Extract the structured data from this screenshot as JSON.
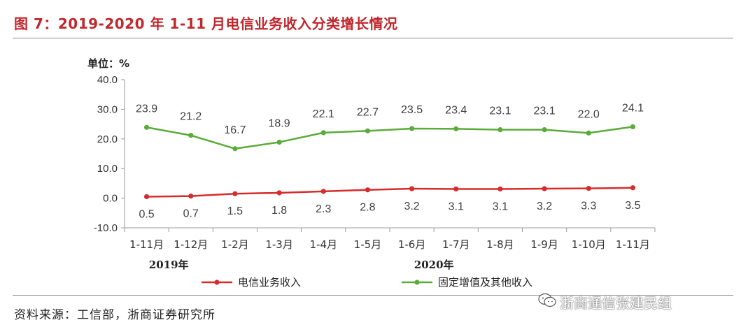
{
  "figure": {
    "title": "图 7：2019-2020 年 1-11 月电信业务收入分类增长情况",
    "source": "资料来源：工信部，浙商证券研究所",
    "watermark": "浙商通信张建民组",
    "watermark_icon": "wechat-icon"
  },
  "chart_data": {
    "type": "line",
    "unit_label": "单位：%",
    "categories": [
      "1-11月",
      "1-12月",
      "1-2月",
      "1-3月",
      "1-4月",
      "1-5月",
      "1-6月",
      "1-7月",
      "1-8月",
      "1-9月",
      "1-10月",
      "1-11月"
    ],
    "year_labels": [
      {
        "label": "2019年",
        "spans": [
          "1-11月",
          "1-12月"
        ]
      },
      {
        "label": "2020年",
        "spans": [
          "1-2月",
          "1-11月"
        ]
      }
    ],
    "ylim": [
      -10,
      40
    ],
    "yticks": [
      "40.0",
      "30.0",
      "20.0",
      "10.0",
      "0.0",
      "-10.0"
    ],
    "grid": false,
    "legend_position": "bottom",
    "series": [
      {
        "name": "电信业务收入",
        "color": "#d62c2c",
        "values": [
          0.5,
          0.7,
          1.5,
          1.8,
          2.3,
          2.8,
          3.2,
          3.1,
          3.1,
          3.2,
          3.3,
          3.5
        ],
        "labels": [
          "0.5",
          "0.7",
          "1.5",
          "1.8",
          "2.3",
          "2.8",
          "3.2",
          "3.1",
          "3.1",
          "3.2",
          "3.3",
          "3.5"
        ],
        "label_position": "below"
      },
      {
        "name": "固定增值及其他收入",
        "color": "#5aab3a",
        "values": [
          23.9,
          21.2,
          16.7,
          18.9,
          22.1,
          22.7,
          23.5,
          23.4,
          23.1,
          23.1,
          22.0,
          24.1
        ],
        "labels": [
          "23.9",
          "21.2",
          "16.7",
          "18.9",
          "22.1",
          "22.7",
          "23.5",
          "23.4",
          "23.1",
          "23.1",
          "22.0",
          "24.1"
        ],
        "label_position": "above"
      }
    ]
  }
}
